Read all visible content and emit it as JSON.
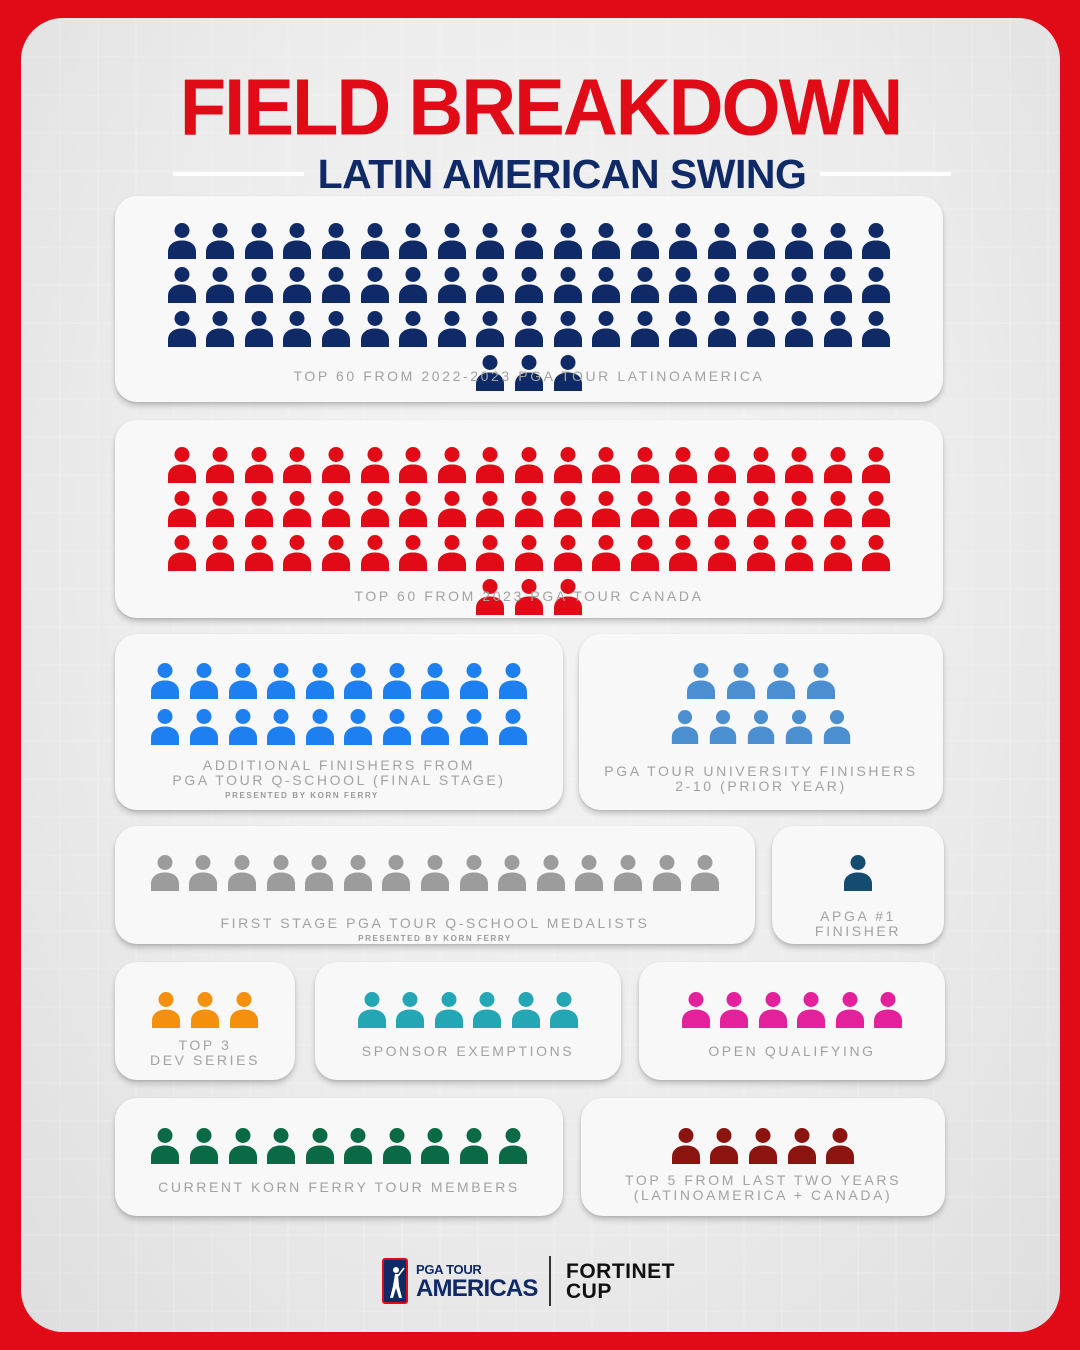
{
  "header": {
    "title": "FIELD BREAKDOWN",
    "subtitle": "LATIN AMERICAN SWING"
  },
  "colors": {
    "navy": "#0f2a66",
    "red": "#e10a17",
    "blue": "#1e7ff0",
    "steel_blue": "#4c8fd0",
    "gray": "#9c9c9c",
    "dark_teal": "#134c6e",
    "orange": "#f4900d",
    "teal": "#25a6b4",
    "magenta": "#e3219b",
    "green": "#0b6a46",
    "maroon": "#8b1410"
  },
  "groups": [
    {
      "id": "latinoamerica",
      "count": 60,
      "color": "#0f2a66",
      "label": "TOP 60 FROM 2022-2023 PGA TOUR LATINOAMERICA",
      "sub_label": ""
    },
    {
      "id": "canada",
      "count": 60,
      "color": "#e10a17",
      "label": "TOP 60 FROM 2023 PGA TOUR CANADA",
      "sub_label": ""
    },
    {
      "id": "qschool_final",
      "count": 20,
      "color": "#1e7ff0",
      "label": "ADDITIONAL FINISHERS FROM",
      "label2": "PGA TOUR Q-SCHOOL (FINAL STAGE)",
      "sub_label": "PRESENTED BY KORN FERRY"
    },
    {
      "id": "university",
      "count": 9,
      "color": "#4c8fd0",
      "label": "PGA TOUR UNIVERSITY FINISHERS",
      "label2": "2-10 (PRIOR YEAR)",
      "sub_label": ""
    },
    {
      "id": "first_stage",
      "count": 15,
      "color": "#9c9c9c",
      "label": "FIRST STAGE PGA TOUR Q-SCHOOL MEDALISTS",
      "sub_label": "PRESENTED BY KORN FERRY"
    },
    {
      "id": "apga",
      "count": 1,
      "color": "#134c6e",
      "label": "APGA #1",
      "label2": "FINISHER",
      "sub_label": ""
    },
    {
      "id": "dev_series",
      "count": 3,
      "color": "#f4900d",
      "label": "TOP 3",
      "label2": "DEV SERIES",
      "sub_label": ""
    },
    {
      "id": "sponsor",
      "count": 6,
      "color": "#25a6b4",
      "label": "SPONSOR EXEMPTIONS",
      "sub_label": ""
    },
    {
      "id": "open_qualifying",
      "count": 6,
      "color": "#e3219b",
      "label": "OPEN QUALIFYING",
      "sub_label": ""
    },
    {
      "id": "korn_ferry",
      "count": 10,
      "color": "#0b6a46",
      "label": "CURRENT KORN FERRY TOUR MEMBERS",
      "sub_label": ""
    },
    {
      "id": "top5_last_two",
      "count": 5,
      "color": "#8b1410",
      "label": "TOP 5 FROM LAST TWO YEARS",
      "label2": "(LATINOAMERICA + CANADA)",
      "sub_label": ""
    }
  ],
  "footer": {
    "pga_line1": "PGA TOUR",
    "pga_line2": "AMERICAS",
    "fortinet_line1": "FORTINET",
    "fortinet_line2": "CUP"
  }
}
